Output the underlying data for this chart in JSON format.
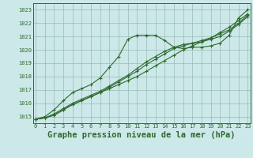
{
  "background_color": "#cce8e8",
  "grid_color": "#99bbbb",
  "line_color": "#2d6a2d",
  "title": "Graphe pression niveau de la mer (hPa)",
  "title_fontsize": 7.5,
  "hours": [
    0,
    1,
    2,
    3,
    4,
    5,
    6,
    7,
    8,
    9,
    10,
    11,
    12,
    13,
    14,
    15,
    16,
    17,
    18,
    19,
    20,
    21,
    22,
    23
  ],
  "series": [
    [
      1014.8,
      1014.9,
      1015.1,
      1015.5,
      1015.9,
      1016.2,
      1016.5,
      1016.8,
      1017.1,
      1017.4,
      1017.7,
      1018.0,
      1018.4,
      1018.8,
      1019.2,
      1019.6,
      1020.0,
      1020.3,
      1020.6,
      1020.9,
      1021.3,
      1021.7,
      1022.2,
      1022.7
    ],
    [
      1014.8,
      1014.9,
      1015.1,
      1015.5,
      1015.9,
      1016.2,
      1016.5,
      1016.8,
      1017.2,
      1017.6,
      1018.0,
      1018.4,
      1018.9,
      1019.3,
      1019.7,
      1020.1,
      1020.3,
      1020.5,
      1020.7,
      1020.9,
      1021.2,
      1021.5,
      1022.0,
      1022.6
    ],
    [
      1014.8,
      1014.9,
      1015.2,
      1015.6,
      1016.0,
      1016.3,
      1016.6,
      1016.9,
      1017.3,
      1017.7,
      1018.1,
      1018.6,
      1019.1,
      1019.5,
      1019.9,
      1020.2,
      1020.4,
      1020.5,
      1020.6,
      1020.8,
      1021.0,
      1021.4,
      1021.9,
      1022.5
    ],
    [
      1014.8,
      1015.0,
      1015.5,
      1016.2,
      1016.8,
      1017.1,
      1017.4,
      1017.9,
      1018.7,
      1019.5,
      1020.8,
      1021.1,
      1021.1,
      1021.1,
      1020.7,
      1020.2,
      1020.1,
      1020.2,
      1020.2,
      1020.3,
      1020.5,
      1021.1,
      1022.4,
      1023.0
    ]
  ],
  "ylim": [
    1014.5,
    1023.5
  ],
  "yticks": [
    1015,
    1016,
    1017,
    1018,
    1019,
    1020,
    1021,
    1022,
    1023
  ],
  "xlim": [
    -0.3,
    23.3
  ],
  "marker": "+",
  "markersize": 3.5,
  "linewidth": 0.8,
  "tick_fontsize": 5.0,
  "fig_width": 3.2,
  "fig_height": 2.0,
  "dpi": 100
}
